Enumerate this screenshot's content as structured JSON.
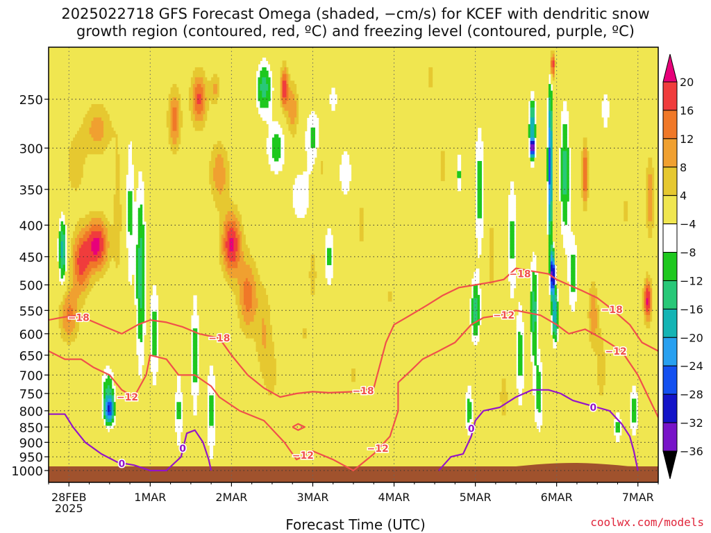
{
  "chart_data": {
    "type": "heatmap",
    "title": "2025022718 GFS Forecast Omega (shaded, −cm/s) for KCEF with dendritic snow\ngrowth region (contoured, red, ºC) and freezing level (contoured, purple, ºC)",
    "xlabel": "Forecast Time (UTC)",
    "ylabel": "",
    "credit": "coolwx.com/models",
    "y_scale": "pressure (log)",
    "ylim": [
      1000,
      200
    ],
    "xlim": [
      -0.25,
      7.25
    ],
    "y_ticks": [
      250,
      300,
      350,
      400,
      450,
      500,
      550,
      600,
      650,
      700,
      750,
      800,
      850,
      900,
      950,
      1000
    ],
    "x_ticks": [
      {
        "value": 0,
        "label": "28FEB",
        "sublabel": "2025"
      },
      {
        "value": 1,
        "label": "1MAR",
        "sublabel": ""
      },
      {
        "value": 2,
        "label": "2MAR",
        "sublabel": ""
      },
      {
        "value": 3,
        "label": "3MAR",
        "sublabel": ""
      },
      {
        "value": 4,
        "label": "4MAR",
        "sublabel": ""
      },
      {
        "value": 5,
        "label": "5MAR",
        "sublabel": ""
      },
      {
        "value": 6,
        "label": "6MAR",
        "sublabel": ""
      },
      {
        "value": 7,
        "label": "7MAR",
        "sublabel": ""
      }
    ],
    "colorbar": {
      "levels": [
        20,
        16,
        12,
        8,
        4,
        -4,
        -8,
        -12,
        -16,
        -20,
        -24,
        -28,
        -32,
        -36
      ],
      "colors": [
        "#e8007a",
        "#f03c3c",
        "#f07828",
        "#f0a030",
        "#e6c830",
        "#f0e650",
        "#ffffff",
        "#1ec81e",
        "#28c878",
        "#14b4b4",
        "#28a0f0",
        "#1450f0",
        "#1414c8",
        "#7814c8",
        "#a014c8",
        "#aaaaaa",
        "#000000"
      ]
    },
    "blobs": [
      {
        "t": 0.35,
        "p": 430,
        "w": 0.14,
        "h": 0.1,
        "v": 21
      },
      {
        "t": 0.15,
        "p": 460,
        "w": 0.12,
        "h": 0.12,
        "v": 17
      },
      {
        "t": 0.0,
        "p": 560,
        "w": 0.12,
        "h": 0.1,
        "v": 13
      },
      {
        "t": 0.35,
        "p": 280,
        "w": 0.18,
        "h": 0.1,
        "v": 10
      },
      {
        "t": 0.08,
        "p": 320,
        "w": 0.12,
        "h": 0.12,
        "v": 7
      },
      {
        "t": 0.6,
        "p": 380,
        "w": 0.06,
        "h": 0.3,
        "v": 6
      },
      {
        "t": -0.08,
        "p": 440,
        "w": 0.05,
        "h": 0.12,
        "v": -18
      },
      {
        "t": 0.5,
        "p": 800,
        "w": 0.06,
        "h": 0.05,
        "v": -22
      },
      {
        "t": 0.48,
        "p": 750,
        "w": 0.08,
        "h": 0.1,
        "v": -12
      },
      {
        "t": 0.75,
        "p": 380,
        "w": 0.05,
        "h": 0.3,
        "v": -9
      },
      {
        "t": 0.88,
        "p": 480,
        "w": 0.06,
        "h": 0.35,
        "v": -14
      },
      {
        "t": 1.05,
        "p": 600,
        "w": 0.06,
        "h": 0.2,
        "v": -10
      },
      {
        "t": 1.35,
        "p": 800,
        "w": 0.05,
        "h": 0.15,
        "v": -9
      },
      {
        "t": 1.55,
        "p": 650,
        "w": 0.05,
        "h": 0.25,
        "v": -10
      },
      {
        "t": 1.75,
        "p": 800,
        "w": 0.06,
        "h": 0.2,
        "v": -9
      },
      {
        "t": 1.3,
        "p": 270,
        "w": 0.08,
        "h": 0.12,
        "v": 14
      },
      {
        "t": 1.6,
        "p": 250,
        "w": 0.1,
        "h": 0.1,
        "v": 17
      },
      {
        "t": 2.0,
        "p": 430,
        "w": 0.12,
        "h": 0.12,
        "v": 21
      },
      {
        "t": 2.2,
        "p": 520,
        "w": 0.12,
        "h": 0.14,
        "v": 14
      },
      {
        "t": 2.4,
        "p": 600,
        "w": 0.1,
        "h": 0.18,
        "v": 8
      },
      {
        "t": 1.85,
        "p": 330,
        "w": 0.12,
        "h": 0.12,
        "v": 11
      },
      {
        "t": 2.5,
        "p": 700,
        "w": 0.08,
        "h": 0.12,
        "v": 5
      },
      {
        "t": 1.8,
        "p": 240,
        "w": 0.06,
        "h": 0.06,
        "v": 9
      },
      {
        "t": 2.4,
        "p": 240,
        "w": 0.1,
        "h": 0.1,
        "v": -14
      },
      {
        "t": 2.55,
        "p": 300,
        "w": 0.12,
        "h": 0.1,
        "v": -10
      },
      {
        "t": 2.85,
        "p": 360,
        "w": 0.12,
        "h": 0.1,
        "v": -8
      },
      {
        "t": 2.65,
        "p": 240,
        "w": 0.05,
        "h": 0.08,
        "v": 19
      },
      {
        "t": 2.75,
        "p": 260,
        "w": 0.07,
        "h": 0.1,
        "v": 12
      },
      {
        "t": 3.0,
        "p": 290,
        "w": 0.1,
        "h": 0.12,
        "v": -9
      },
      {
        "t": 3.1,
        "p": 320,
        "w": 0.06,
        "h": 0.08,
        "v": 6
      },
      {
        "t": 3.2,
        "p": 450,
        "w": 0.06,
        "h": 0.12,
        "v": -9
      },
      {
        "t": 3.4,
        "p": 330,
        "w": 0.08,
        "h": 0.1,
        "v": -8
      },
      {
        "t": 3.0,
        "p": 480,
        "w": 0.06,
        "h": 0.12,
        "v": 6
      },
      {
        "t": 3.6,
        "p": 400,
        "w": 0.06,
        "h": 0.15,
        "v": 5
      },
      {
        "t": 2.9,
        "p": 600,
        "w": 0.04,
        "h": 0.06,
        "v": 5
      },
      {
        "t": 3.95,
        "p": 520,
        "w": 0.04,
        "h": 0.05,
        "v": 5
      },
      {
        "t": 4.45,
        "p": 230,
        "w": 0.06,
        "h": 0.08,
        "v": 5
      },
      {
        "t": 4.6,
        "p": 320,
        "w": 0.05,
        "h": 0.1,
        "v": 6
      },
      {
        "t": 4.8,
        "p": 330,
        "w": 0.04,
        "h": 0.08,
        "v": -9
      },
      {
        "t": 3.5,
        "p": 700,
        "w": 0.05,
        "h": 0.05,
        "v": 6
      },
      {
        "t": 3.25,
        "p": 250,
        "w": 0.05,
        "h": 0.06,
        "v": -8
      },
      {
        "t": 5.05,
        "p": 350,
        "w": 0.06,
        "h": 0.25,
        "v": -10
      },
      {
        "t": 5.0,
        "p": 550,
        "w": 0.06,
        "h": 0.12,
        "v": -14
      },
      {
        "t": 5.2,
        "p": 450,
        "w": 0.06,
        "h": 0.25,
        "v": 5
      },
      {
        "t": 5.45,
        "p": 420,
        "w": 0.06,
        "h": 0.25,
        "v": -9
      },
      {
        "t": 4.92,
        "p": 800,
        "w": 0.05,
        "h": 0.1,
        "v": -10
      },
      {
        "t": 5.35,
        "p": 760,
        "w": 0.06,
        "h": 0.12,
        "v": 6
      },
      {
        "t": 5.55,
        "p": 650,
        "w": 0.05,
        "h": 0.2,
        "v": -10
      },
      {
        "t": 5.7,
        "p": 280,
        "w": 0.04,
        "h": 0.12,
        "v": -20
      },
      {
        "t": 5.7,
        "p": 300,
        "w": 0.02,
        "h": 0.03,
        "v": -33
      },
      {
        "t": 5.72,
        "p": 550,
        "w": 0.05,
        "h": 0.2,
        "v": -14
      },
      {
        "t": 5.78,
        "p": 750,
        "w": 0.06,
        "h": 0.15,
        "v": -10
      },
      {
        "t": 5.92,
        "p": 320,
        "w": 0.03,
        "h": 0.3,
        "v": -27
      },
      {
        "t": 5.95,
        "p": 480,
        "w": 0.025,
        "h": 0.08,
        "v": -37
      },
      {
        "t": 5.98,
        "p": 560,
        "w": 0.04,
        "h": 0.1,
        "v": -20
      },
      {
        "t": 6.1,
        "p": 330,
        "w": 0.06,
        "h": 0.25,
        "v": -14
      },
      {
        "t": 6.2,
        "p": 480,
        "w": 0.06,
        "h": 0.15,
        "v": -10
      },
      {
        "t": 5.95,
        "p": 220,
        "w": 0.03,
        "h": 0.05,
        "v": 21
      },
      {
        "t": 6.35,
        "p": 330,
        "w": 0.04,
        "h": 0.12,
        "v": 17
      },
      {
        "t": 6.45,
        "p": 560,
        "w": 0.06,
        "h": 0.12,
        "v": 12
      },
      {
        "t": 6.55,
        "p": 680,
        "w": 0.06,
        "h": 0.15,
        "v": 7
      },
      {
        "t": 6.6,
        "p": 260,
        "w": 0.05,
        "h": 0.08,
        "v": -8
      },
      {
        "t": 6.85,
        "p": 380,
        "w": 0.06,
        "h": 0.1,
        "v": 5
      },
      {
        "t": 7.15,
        "p": 360,
        "w": 0.05,
        "h": 0.15,
        "v": 12
      },
      {
        "t": 7.12,
        "p": 530,
        "w": 0.05,
        "h": 0.08,
        "v": 21
      },
      {
        "t": 6.95,
        "p": 800,
        "w": 0.06,
        "h": 0.1,
        "v": -10
      },
      {
        "t": 6.75,
        "p": 850,
        "w": 0.05,
        "h": 0.06,
        "v": -9
      }
    ],
    "contours": [
      {
        "level": -18,
        "color": "#f0504a",
        "label": "−18",
        "points": [
          [
            -0.25,
            570
          ],
          [
            -0.1,
            565
          ],
          [
            0.1,
            560
          ],
          [
            0.25,
            570
          ],
          [
            0.45,
            585
          ],
          [
            0.65,
            600
          ],
          [
            0.85,
            580
          ],
          [
            1.0,
            570
          ],
          [
            1.2,
            575
          ],
          [
            1.4,
            585
          ],
          [
            1.6,
            600
          ],
          [
            1.85,
            610
          ],
          [
            2.0,
            650
          ],
          [
            2.2,
            700
          ],
          [
            2.4,
            735
          ],
          [
            2.6,
            760
          ],
          [
            2.8,
            750
          ],
          [
            3.0,
            745
          ],
          [
            3.2,
            748
          ],
          [
            3.5,
            745
          ],
          [
            3.75,
            735
          ],
          [
            3.9,
            620
          ],
          [
            4.0,
            580
          ],
          [
            4.2,
            560
          ],
          [
            4.4,
            540
          ],
          [
            4.6,
            520
          ],
          [
            4.8,
            505
          ],
          [
            5.0,
            500
          ],
          [
            5.2,
            495
          ],
          [
            5.35,
            490
          ],
          [
            5.5,
            470
          ],
          [
            5.7,
            475
          ],
          [
            5.9,
            480
          ],
          [
            6.0,
            490
          ],
          [
            6.15,
            500
          ],
          [
            6.3,
            510
          ],
          [
            6.5,
            525
          ],
          [
            6.7,
            550
          ],
          [
            6.9,
            580
          ],
          [
            7.05,
            620
          ],
          [
            7.25,
            640
          ]
        ],
        "labels": [
          [
            0.12,
            565
          ],
          [
            1.85,
            610
          ],
          [
            3.62,
            742
          ],
          [
            5.55,
            480
          ],
          [
            6.68,
            548
          ]
        ]
      },
      {
        "level": -12,
        "color": "#f0504a",
        "label": "−12",
        "points": [
          [
            -0.25,
            640
          ],
          [
            -0.05,
            660
          ],
          [
            0.15,
            660
          ],
          [
            0.3,
            680
          ],
          [
            0.5,
            700
          ],
          [
            0.65,
            740
          ],
          [
            0.8,
            760
          ],
          [
            0.95,
            700
          ],
          [
            1.0,
            650
          ],
          [
            1.2,
            660
          ],
          [
            1.35,
            700
          ],
          [
            1.55,
            700
          ],
          [
            1.75,
            730
          ],
          [
            1.85,
            760
          ],
          [
            2.1,
            800
          ],
          [
            2.4,
            830
          ],
          [
            2.65,
            900
          ],
          [
            2.8,
            960
          ],
          [
            3.0,
            930
          ],
          [
            3.25,
            960
          ],
          [
            3.5,
            1000
          ],
          [
            3.75,
            940
          ],
          [
            3.95,
            880
          ],
          [
            4.05,
            800
          ],
          [
            4.05,
            720
          ],
          [
            4.2,
            690
          ],
          [
            4.35,
            660
          ],
          [
            4.55,
            640
          ],
          [
            4.75,
            620
          ],
          [
            4.95,
            580
          ],
          [
            5.1,
            565
          ],
          [
            5.3,
            560
          ],
          [
            5.5,
            550
          ],
          [
            5.8,
            560
          ],
          [
            6.0,
            580
          ],
          [
            6.15,
            600
          ],
          [
            6.35,
            590
          ],
          [
            6.55,
            610
          ],
          [
            6.8,
            640
          ],
          [
            7.0,
            700
          ],
          [
            7.15,
            770
          ],
          [
            7.25,
            820
          ]
        ],
        "labels": [
          [
            0.72,
            760
          ],
          [
            2.88,
            945
          ],
          [
            3.8,
            920
          ],
          [
            5.35,
            560
          ],
          [
            6.73,
            640
          ]
        ]
      },
      {
        "level": -12,
        "color": "#f0504a",
        "label": "",
        "points": [
          [
            2.75,
            850
          ],
          [
            2.82,
            840
          ],
          [
            2.9,
            850
          ],
          [
            2.82,
            860
          ],
          [
            2.75,
            850
          ]
        ],
        "labels": []
      },
      {
        "level": 0,
        "color": "#9414c8",
        "label": "0",
        "points": [
          [
            -0.25,
            810
          ],
          [
            -0.05,
            810
          ],
          [
            0.05,
            850
          ],
          [
            0.2,
            900
          ],
          [
            0.4,
            940
          ],
          [
            0.6,
            970
          ],
          [
            0.8,
            980
          ],
          [
            1.0,
            1000
          ],
          [
            1.2,
            1000
          ],
          [
            1.38,
            950
          ],
          [
            1.45,
            870
          ],
          [
            1.55,
            860
          ],
          [
            1.65,
            900
          ],
          [
            1.72,
            960
          ],
          [
            1.75,
            1000
          ]
        ],
        "labels": [
          [
            0.65,
            975
          ],
          [
            1.4,
            920
          ]
        ]
      },
      {
        "level": 0,
        "color": "#9414c8",
        "label": "0",
        "points": [
          [
            4.55,
            1000
          ],
          [
            4.7,
            950
          ],
          [
            4.85,
            940
          ],
          [
            4.95,
            880
          ],
          [
            5.0,
            830
          ],
          [
            5.1,
            800
          ],
          [
            5.3,
            790
          ],
          [
            5.5,
            760
          ],
          [
            5.7,
            740
          ],
          [
            5.9,
            740
          ],
          [
            6.05,
            750
          ],
          [
            6.2,
            770
          ],
          [
            6.35,
            780
          ],
          [
            6.5,
            790
          ],
          [
            6.65,
            800
          ],
          [
            6.8,
            840
          ],
          [
            6.9,
            880
          ],
          [
            6.95,
            930
          ],
          [
            7.0,
            1000
          ]
        ],
        "labels": [
          [
            4.95,
            855
          ],
          [
            6.45,
            790
          ]
        ]
      }
    ],
    "grid": true,
    "terrain_color": "#a0522d"
  }
}
